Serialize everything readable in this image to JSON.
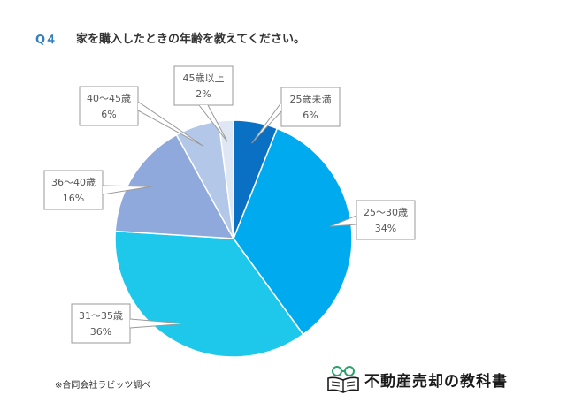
{
  "question": {
    "number": "Q４",
    "text": "家を購入したときの年齢を教えてください。"
  },
  "chart_data": {
    "type": "pie",
    "categories": [
      "25歳未満",
      "25～30歳",
      "31～35歳",
      "36～40歳",
      "40～45歳",
      "45歳以上"
    ],
    "values": [
      6,
      34,
      36,
      16,
      6,
      2
    ],
    "labels": [
      "6%",
      "34%",
      "36%",
      "16%",
      "6%",
      "2%"
    ],
    "colors": [
      "#0a70c4",
      "#00aaee",
      "#1ec8ea",
      "#8fa9dc",
      "#b3c7e8",
      "#dfe7f5"
    ]
  },
  "source": "※合同会社ラビッツ調べ",
  "logo": {
    "text": "不動産売却の教科書",
    "icon": "book-glasses-icon"
  }
}
